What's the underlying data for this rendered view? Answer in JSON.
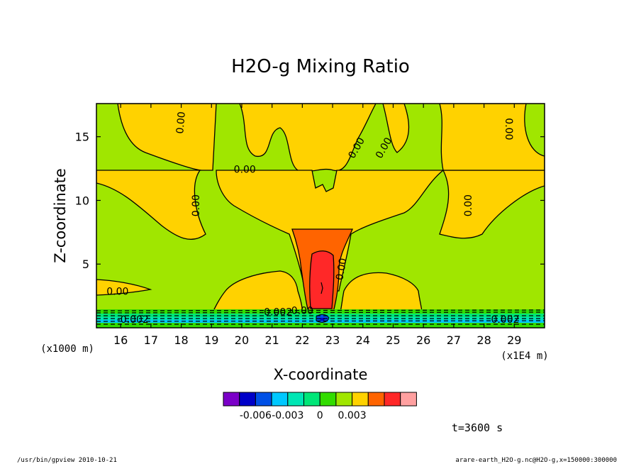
{
  "chart_data": {
    "type": "heatmap",
    "title": "H2O-g Mixing Ratio",
    "xlabel": "X-coordinate",
    "ylabel": "Z-coordinate",
    "x_unit": "(x1E4 m)",
    "y_unit": "(x1000 m)",
    "x_ticks": [
      16,
      17,
      18,
      19,
      20,
      21,
      22,
      23,
      24,
      25,
      26,
      27,
      28,
      29
    ],
    "y_ticks": [
      5,
      10,
      15
    ],
    "xlim": [
      15.2,
      30.0
    ],
    "ylim": [
      0.0,
      17.6
    ],
    "contour_labels": [
      {
        "text": "0.00",
        "x": 18.0,
        "y": 16.1,
        "rotate": -85
      },
      {
        "text": "0.00",
        "x": 23.8,
        "y": 14.1,
        "rotate": -60
      },
      {
        "text": "0.00",
        "x": 24.7,
        "y": 14.1,
        "rotate": -60
      },
      {
        "text": "0.00",
        "x": 28.8,
        "y": 15.6,
        "rotate": 90
      },
      {
        "text": "0.00",
        "x": 20.1,
        "y": 12.4,
        "rotate": 0
      },
      {
        "text": "0.00",
        "x": 18.5,
        "y": 9.6,
        "rotate": -90
      },
      {
        "text": "0.00",
        "x": 27.5,
        "y": 9.6,
        "rotate": -90
      },
      {
        "text": "0.00",
        "x": 23.3,
        "y": 4.6,
        "rotate": -80
      },
      {
        "text": "0.00",
        "x": 15.9,
        "y": 2.8,
        "rotate": 0
      },
      {
        "text": "0.002",
        "x": 21.2,
        "y": 1.2,
        "rotate": 0
      },
      {
        "text": "0.00",
        "x": 22.0,
        "y": 1.3,
        "rotate": 0
      },
      {
        "text": "-0.002",
        "x": 16.4,
        "y": 0.6,
        "rotate": 0
      },
      {
        "text": "0.002",
        "x": 28.7,
        "y": 0.6,
        "rotate": 0
      }
    ],
    "colorbar": {
      "colors": [
        "#7b00c8",
        "#0000c8",
        "#0050e6",
        "#00c8ff",
        "#00e6b4",
        "#00e678",
        "#32dc00",
        "#a0e600",
        "#ffd200",
        "#ff6400",
        "#ff2828",
        "#ffa0a0"
      ],
      "tick_labels": [
        "-0.006",
        "-0.003",
        "0",
        "0.003"
      ],
      "tick_boundaries": [
        2,
        4,
        6,
        8
      ]
    },
    "grid": false,
    "legend": "bottom-center colorbar"
  },
  "annotations": {
    "time": "t=3600 s",
    "footer_left": "/usr/bin/gpview   2010-10-21",
    "footer_right": "arare-earth_H2O-g.nc@H2O-g,x=150000:300000"
  }
}
